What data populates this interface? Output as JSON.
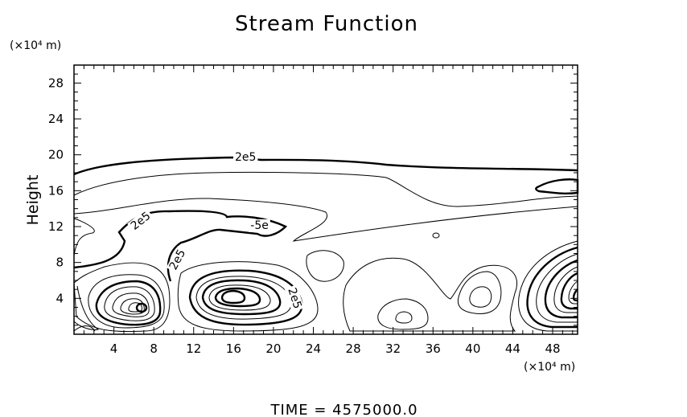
{
  "chart_data": {
    "type": "contour",
    "title": "Stream Function",
    "ylabel": "Height",
    "x_unit": "(×10⁴ m)",
    "y_unit": "(×10⁴ m)",
    "xlim": [
      0,
      50.5
    ],
    "ylim": [
      0,
      30
    ],
    "x_ticks": [
      4,
      8,
      12,
      16,
      20,
      24,
      28,
      32,
      36,
      40,
      44,
      48
    ],
    "y_ticks": [
      4,
      8,
      12,
      16,
      20,
      24,
      28
    ],
    "contour_labels": [
      {
        "text": "2e5",
        "x": 17.2,
        "y": 19.7,
        "angle": 0
      },
      {
        "text": "2e5",
        "x": 6.7,
        "y": 12.6,
        "angle": -38
      },
      {
        "text": "2e5",
        "x": 10.4,
        "y": 8.3,
        "angle": -62
      },
      {
        "text": "2e5",
        "x": 22.1,
        "y": 4.0,
        "angle": 72
      },
      {
        "text": "-5e",
        "x": 18.6,
        "y": 12.1,
        "angle": 0
      }
    ],
    "time_label": "TIME  =  4575000.0",
    "grid": false
  }
}
